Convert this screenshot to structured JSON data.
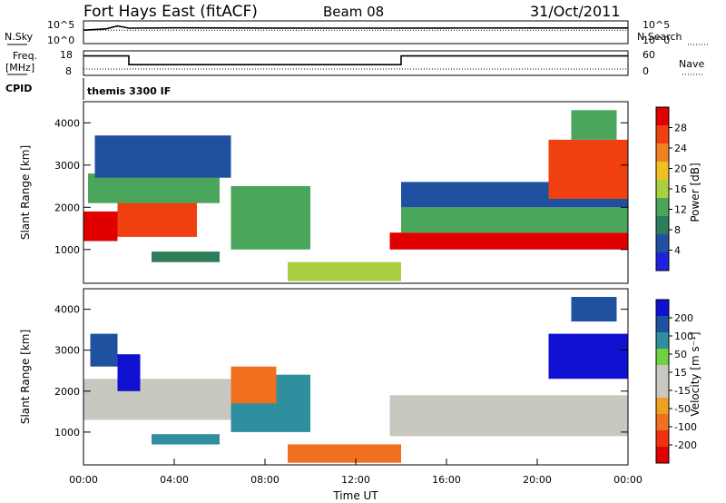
{
  "header": {
    "station": "Fort Hays East (fitACF)",
    "beam": "Beam 08",
    "date": "31/Oct/2011"
  },
  "strip": {
    "nsky_label": "N.Sky",
    "nsearch_label": "N.Search",
    "freq_label_1": "Freq.",
    "freq_label_2": "[MHz]",
    "nave_label": "Nave",
    "cpid_label": "CPID",
    "cpid_value": "themis 3300 IF",
    "noise_left_ticks": [
      "10^5",
      "10^0"
    ],
    "noise_right_ticks": [
      "10^5",
      "10^0"
    ],
    "freq_left_ticks": [
      "18",
      "8"
    ],
    "nave_right_ticks": [
      "60",
      "0"
    ]
  },
  "colors": {
    "power_scale": [
      "#2020e0",
      "#2050a0",
      "#2e7d5a",
      "#4aa65a",
      "#a8d040",
      "#f0c020",
      "#f08020",
      "#f04010",
      "#e00000"
    ],
    "velocity_scale": [
      "#1010d0",
      "#2050a0",
      "#2f8f9f",
      "#70d040",
      "#c8c8c0",
      "#c8c8c0",
      "#f0a020",
      "#f07020",
      "#f03010",
      "#e00000"
    ],
    "ground_scatter": "#c8c8c0"
  },
  "chart_data": [
    {
      "type": "line",
      "name": "noise strip",
      "series": [
        {
          "name": "N.Sky",
          "x": [
            0,
            1,
            1.5,
            2,
            4,
            8,
            12,
            16,
            20,
            24
          ],
          "y": [
            1000,
            2000,
            10000,
            3000,
            3500,
            3200,
            3000,
            3200,
            3400,
            3300
          ]
        },
        {
          "name": "N.Search",
          "x": [
            0,
            24
          ],
          "y": [
            1000,
            1000
          ]
        }
      ],
      "ylim": [
        "10^0",
        "10^5"
      ]
    },
    {
      "type": "line",
      "name": "frequency / nave strip",
      "series": [
        {
          "name": "Freq. [MHz]",
          "x": [
            0,
            2,
            2,
            14,
            14,
            24
          ],
          "y": [
            16.5,
            16.5,
            12.5,
            12.5,
            16.5,
            16.5
          ]
        },
        {
          "name": "Nave",
          "x": [
            0,
            24
          ],
          "y": [
            15,
            15
          ]
        }
      ],
      "ylim_left": [
        8,
        18
      ],
      "ylim_right": [
        0,
        60
      ]
    },
    {
      "type": "heatmap",
      "name": "power",
      "ylabel": "Slant Range [km]",
      "yticks": [
        "1000",
        "2000",
        "3000",
        "4000"
      ],
      "ylim": [
        200,
        4500
      ],
      "colorbar_label": "Power [dB]",
      "colorbar_ticks": [
        "4",
        "8",
        "12",
        "16",
        "20",
        "24",
        "28"
      ],
      "regions": [
        {
          "t0": 0.0,
          "t1": 1.5,
          "r0": 1200,
          "r1": 1900,
          "v": 27
        },
        {
          "t0": 1.5,
          "t1": 5.0,
          "r0": 1300,
          "r1": 2200,
          "v": 22
        },
        {
          "t0": 0.2,
          "t1": 6.0,
          "r0": 2100,
          "r1": 2800,
          "v": 10
        },
        {
          "t0": 0.5,
          "t1": 6.5,
          "r0": 2700,
          "r1": 3700,
          "v": 6
        },
        {
          "t0": 3.0,
          "t1": 6.0,
          "r0": 700,
          "r1": 950,
          "v": 8
        },
        {
          "t0": 6.5,
          "t1": 10.0,
          "r0": 1000,
          "r1": 2500,
          "v": 10
        },
        {
          "t0": 9.0,
          "t1": 14.0,
          "r0": 250,
          "r1": 700,
          "v": 14
        },
        {
          "t0": 13.5,
          "t1": 24.0,
          "r0": 1000,
          "r1": 1400,
          "v": 27
        },
        {
          "t0": 14.0,
          "t1": 24.0,
          "r0": 1400,
          "r1": 2000,
          "v": 12
        },
        {
          "t0": 14.0,
          "t1": 24.0,
          "r0": 2000,
          "r1": 2600,
          "v": 5
        },
        {
          "t0": 20.5,
          "t1": 24.0,
          "r0": 2200,
          "r1": 3600,
          "v": 22
        },
        {
          "t0": 21.5,
          "t1": 23.5,
          "r0": 3600,
          "r1": 4300,
          "v": 12
        }
      ]
    },
    {
      "type": "heatmap",
      "name": "velocity",
      "xlabel": "Time UT",
      "ylabel": "Slant Range [km]",
      "xticks": [
        "00:00",
        "04:00",
        "08:00",
        "12:00",
        "16:00",
        "20:00",
        "00:00"
      ],
      "yticks": [
        "1000",
        "2000",
        "3000",
        "4000"
      ],
      "xlim": [
        0,
        24
      ],
      "ylim": [
        200,
        4500
      ],
      "colorbar_label": "Velocity [m s⁻¹]",
      "colorbar_ticks": [
        "200",
        "100",
        "50",
        "15",
        "-15",
        "-50",
        "-100",
        "-200"
      ],
      "regions": [
        {
          "t0": 0.0,
          "t1": 6.5,
          "r0": 1300,
          "r1": 2300,
          "v": 0
        },
        {
          "t0": 1.5,
          "t1": 2.5,
          "r0": 2000,
          "r1": 2900,
          "v": 220
        },
        {
          "t0": 0.3,
          "t1": 1.5,
          "r0": 2600,
          "r1": 3400,
          "v": 120
        },
        {
          "t0": 6.5,
          "t1": 10.0,
          "r0": 1000,
          "r1": 2400,
          "v": 40
        },
        {
          "t0": 6.5,
          "t1": 8.5,
          "r0": 1700,
          "r1": 2600,
          "v": -60
        },
        {
          "t0": 3.0,
          "t1": 6.0,
          "r0": 700,
          "r1": 950,
          "v": 40
        },
        {
          "t0": 9.0,
          "t1": 14.0,
          "r0": 250,
          "r1": 700,
          "v": -40
        },
        {
          "t0": 13.5,
          "t1": 24.0,
          "r0": 900,
          "r1": 1900,
          "v": 0
        },
        {
          "t0": 20.5,
          "t1": 24.0,
          "r0": 2300,
          "r1": 3400,
          "v": 220
        },
        {
          "t0": 21.5,
          "t1": 23.5,
          "r0": 3700,
          "r1": 4300,
          "v": 150
        }
      ]
    }
  ]
}
